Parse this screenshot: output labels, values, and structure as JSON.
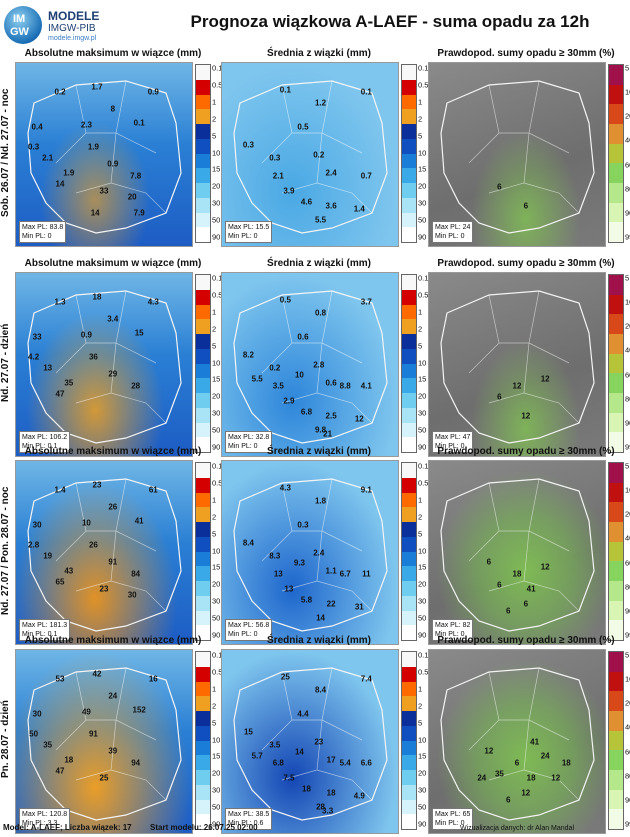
{
  "logo": {
    "badge_top": "IM",
    "badge_bottom": "GW",
    "name": "MODELE",
    "sub": "IMGW-PIB",
    "url": "modele.imgw.pl"
  },
  "title": "Prognoza wiązkowa A-LAEF - suma opadu za 12h",
  "columns": [
    "Absolutne maksimum w wiązce (mm)",
    "Średnia z wiązki (mm)",
    "Prawdopod. sumy opadu ≥ 30mm (%)"
  ],
  "rows": [
    {
      "label": "Sob. 26.07 / Nd. 27.07 - noc",
      "title_max": "Absolutne maksimum w wiązce (mm)",
      "title_mean": "Średnia z wiązki (mm)",
      "title_prob": "Prawdopod. sumy opadu ≥ 30mm (%)",
      "max": {
        "max_pl": "Max PL: 83.8",
        "min_pl": "Min PL: 0",
        "values": [
          "0.2",
          "1.7",
          "0.9",
          "8",
          "0.4",
          "0.3",
          "2.3",
          "0.1",
          "1.9",
          "2.1",
          "0.9",
          "1.9",
          "7.8",
          "14",
          "33",
          "20",
          "14",
          "7.9"
        ]
      },
      "mean": {
        "max_pl": "Max PL: 15.5",
        "min_pl": "Min PL: 0",
        "values": [
          "0.1",
          "1.2",
          "0.1",
          "0.5",
          "0.3",
          "0.3",
          "0.2",
          "2.1",
          "2.4",
          "0.7",
          "3.9",
          "4.6",
          "3.6",
          "1.4",
          "5.5"
        ]
      },
      "prob": {
        "max_pl": "Max PL: 24",
        "min_pl": "Min PL: 0",
        "values": [
          "6",
          "6"
        ]
      }
    },
    {
      "label": "Nd. 27.07 - dzień",
      "title_max": "Absolutne maksimum w wiązce (mm)",
      "title_mean": "Średnia z wiązki (mm)",
      "title_prob": "Prawdopod. sumy opadu ≥ 30mm (%)",
      "max": {
        "max_pl": "Max PL: 106.2",
        "min_pl": "Min PL: 0.1",
        "values": [
          "1.3",
          "18",
          "4.3",
          "3.4",
          "33",
          "4.2",
          "0.9",
          "15",
          "36",
          "13",
          "29",
          "35",
          "28",
          "47"
        ]
      },
      "mean": {
        "max_pl": "Max PL: 32.8",
        "min_pl": "Min PL: 0",
        "values": [
          "0.5",
          "0.8",
          "3.7",
          "0.6",
          "8.2",
          "0.2",
          "2.8",
          "3.5",
          "0.6",
          "4.1",
          "2.9",
          "6.8",
          "2.5",
          "12",
          "9.8",
          "8.8",
          "10",
          "5.5",
          "21"
        ]
      },
      "prob": {
        "max_pl": "Max PL: 47",
        "min_pl": "Min PL: 0",
        "values": [
          "6",
          "12",
          "12",
          "12"
        ]
      }
    },
    {
      "label": "Nd. 27.07 / Pon. 28.07 - noc",
      "title_max": "Absolutne maksimum w wiązce (mm)",
      "title_mean": "Średnia z wiązki (mm)",
      "title_prob": "Prawdopod. sumy opadu ≥ 30mm (%)",
      "max": {
        "max_pl": "Max PL: 181.3",
        "min_pl": "Min PL: 0.1",
        "values": [
          "1.4",
          "23",
          "61",
          "26",
          "30",
          "2.8",
          "10",
          "41",
          "26",
          "19",
          "91",
          "43",
          "84",
          "65",
          "23",
          "30"
        ]
      },
      "mean": {
        "max_pl": "Max PL: 56.8",
        "min_pl": "Min PL: 0",
        "values": [
          "4.3",
          "1.8",
          "9.1",
          "0.3",
          "8.4",
          "8.3",
          "2.4",
          "13",
          "1.1",
          "11",
          "13",
          "5.8",
          "22",
          "31",
          "14",
          "6.7",
          "9.3"
        ]
      },
      "prob": {
        "max_pl": "Max PL: 82",
        "min_pl": "Min PL: 0",
        "values": [
          "6",
          "6",
          "12",
          "18",
          "6",
          "41",
          "6"
        ]
      }
    },
    {
      "label": "Pn. 28.07 - dzień",
      "title_max": "Absolutne maksimum w wiązce (mm)",
      "title_mean": "Średnia z wiązki (mm)",
      "title_prob": "Prawdopod. sumy opadu ≥ 30mm (%)",
      "max": {
        "max_pl": "Max PL: 120.8",
        "min_pl": "Min PL: 3.3",
        "values": [
          "53",
          "42",
          "16",
          "24",
          "30",
          "50",
          "49",
          "152",
          "91",
          "35",
          "39",
          "18",
          "94",
          "47",
          "25"
        ]
      },
      "mean": {
        "max_pl": "Max PL: 38.5",
        "min_pl": "Min PL: 0.6",
        "values": [
          "25",
          "8.4",
          "7.4",
          "4.4",
          "15",
          "3.5",
          "23",
          "6.8",
          "17",
          "6.6",
          "7.5",
          "18",
          "18",
          "4.9",
          "28",
          "5.4",
          "14",
          "5.7",
          "3.3"
        ]
      },
      "prob": {
        "max_pl": "Max PL: 65",
        "min_pl": "Min PL: 0",
        "values": [
          "35",
          "12",
          "24",
          "6",
          "12",
          "18",
          "6",
          "12",
          "24",
          "41",
          "18"
        ]
      }
    }
  ],
  "colorbar_rain": {
    "labels": [
      "0.1",
      "0.5",
      "1",
      "2",
      "5",
      "10",
      "15",
      "20",
      "30",
      "50",
      "90"
    ],
    "colors": [
      "#ffffff",
      "#d6f2fb",
      "#a8e3f6",
      "#6fcdf0",
      "#3aa9e8",
      "#1a7dd8",
      "#0f4fc0",
      "#0a2f9a",
      "#f0a020",
      "#ff6a00",
      "#d40000",
      "#f8f8f8"
    ]
  },
  "colorbar_prob": {
    "labels": [
      "5",
      "10",
      "20",
      "40",
      "60",
      "80",
      "90",
      "99"
    ],
    "colors": [
      "#f2fbe6",
      "#d9f5b4",
      "#b4e88a",
      "#86d45e",
      "#b6c43a",
      "#e09030",
      "#d84818",
      "#c01010",
      "#a0104a"
    ]
  },
  "footer": {
    "model": "Model: A-LAEF; Liczba wiązek: 17",
    "start": "Start modelu: 26.07.25 02:00",
    "credit": "Wizualizacja danych: dr Alan Mandal"
  }
}
